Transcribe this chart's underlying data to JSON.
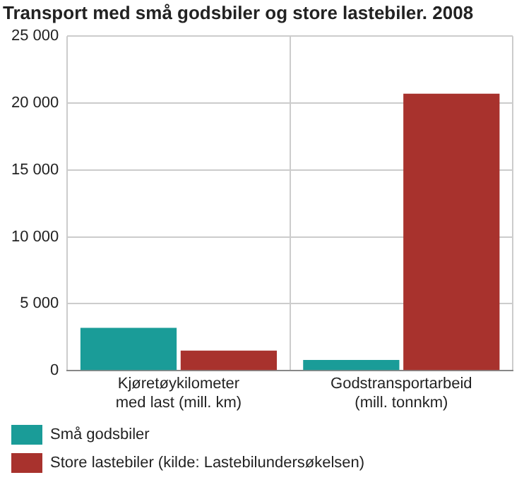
{
  "chart_data": {
    "type": "bar",
    "title": "Transport med små godsbiler og store lastebiler. 2008",
    "categories": [
      "Kjøretøykilometer med last (mill. km)",
      "Godstransportarbeid (mill. tonnkm)"
    ],
    "series": [
      {
        "name": "Små godsbiler",
        "color": "#1a9c98",
        "values": [
          3200,
          800
        ]
      },
      {
        "name": "Store lastebiler (kilde: Lastebilundersøkelsen)",
        "color": "#a8322d",
        "values": [
          1500,
          20700
        ]
      }
    ],
    "ylim": [
      0,
      25000
    ],
    "yticks": [
      {
        "value": 0,
        "label": "0"
      },
      {
        "value": 5000,
        "label": "5 000"
      },
      {
        "value": 10000,
        "label": "10 000"
      },
      {
        "value": 15000,
        "label": "15 000"
      },
      {
        "value": 20000,
        "label": "20 000"
      },
      {
        "value": 25000,
        "label": "25 000"
      }
    ],
    "grid": true,
    "legend": "bottom"
  }
}
